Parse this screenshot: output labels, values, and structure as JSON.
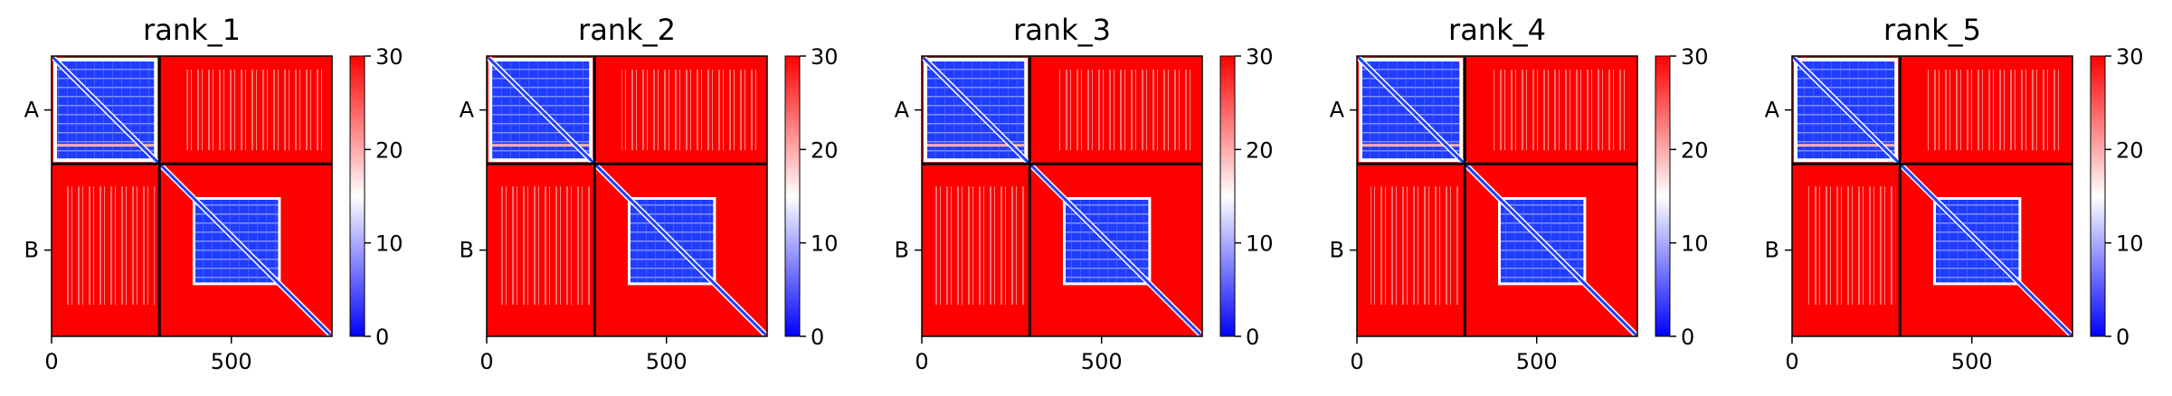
{
  "chart_data": [
    {
      "type": "heatmap",
      "title": "rank_1",
      "chains": [
        "A",
        "B"
      ],
      "chain_boundary": 300,
      "x_ticks": [
        0,
        500
      ],
      "colorbar": {
        "min": 0,
        "max": 30,
        "ticks": [
          0,
          10,
          20,
          30
        ],
        "colors": [
          "#0000ff",
          "#ffffff",
          "#ff0000"
        ]
      },
      "xlim": [
        0,
        780
      ]
    },
    {
      "type": "heatmap",
      "title": "rank_2",
      "chains": [
        "A",
        "B"
      ],
      "chain_boundary": 300,
      "x_ticks": [
        0,
        500
      ],
      "colorbar": {
        "min": 0,
        "max": 30,
        "ticks": [
          0,
          10,
          20,
          30
        ],
        "colors": [
          "#0000ff",
          "#ffffff",
          "#ff0000"
        ]
      },
      "xlim": [
        0,
        780
      ]
    },
    {
      "type": "heatmap",
      "title": "rank_3",
      "chains": [
        "A",
        "B"
      ],
      "chain_boundary": 300,
      "x_ticks": [
        0,
        500
      ],
      "colorbar": {
        "min": 0,
        "max": 30,
        "ticks": [
          0,
          10,
          20,
          30
        ],
        "colors": [
          "#0000ff",
          "#ffffff",
          "#ff0000"
        ]
      },
      "xlim": [
        0,
        780
      ]
    },
    {
      "type": "heatmap",
      "title": "rank_4",
      "chains": [
        "A",
        "B"
      ],
      "chain_boundary": 300,
      "x_ticks": [
        0,
        500
      ],
      "colorbar": {
        "min": 0,
        "max": 30,
        "ticks": [
          0,
          10,
          20,
          30
        ],
        "colors": [
          "#0000ff",
          "#ffffff",
          "#ff0000"
        ]
      },
      "xlim": [
        0,
        780
      ]
    },
    {
      "type": "heatmap",
      "title": "rank_5",
      "chains": [
        "A",
        "B"
      ],
      "chain_boundary": 300,
      "x_ticks": [
        0,
        500
      ],
      "colorbar": {
        "min": 0,
        "max": 30,
        "ticks": [
          0,
          10,
          20,
          30
        ],
        "colors": [
          "#0000ff",
          "#ffffff",
          "#ff0000"
        ]
      },
      "xlim": [
        0,
        780
      ]
    }
  ]
}
